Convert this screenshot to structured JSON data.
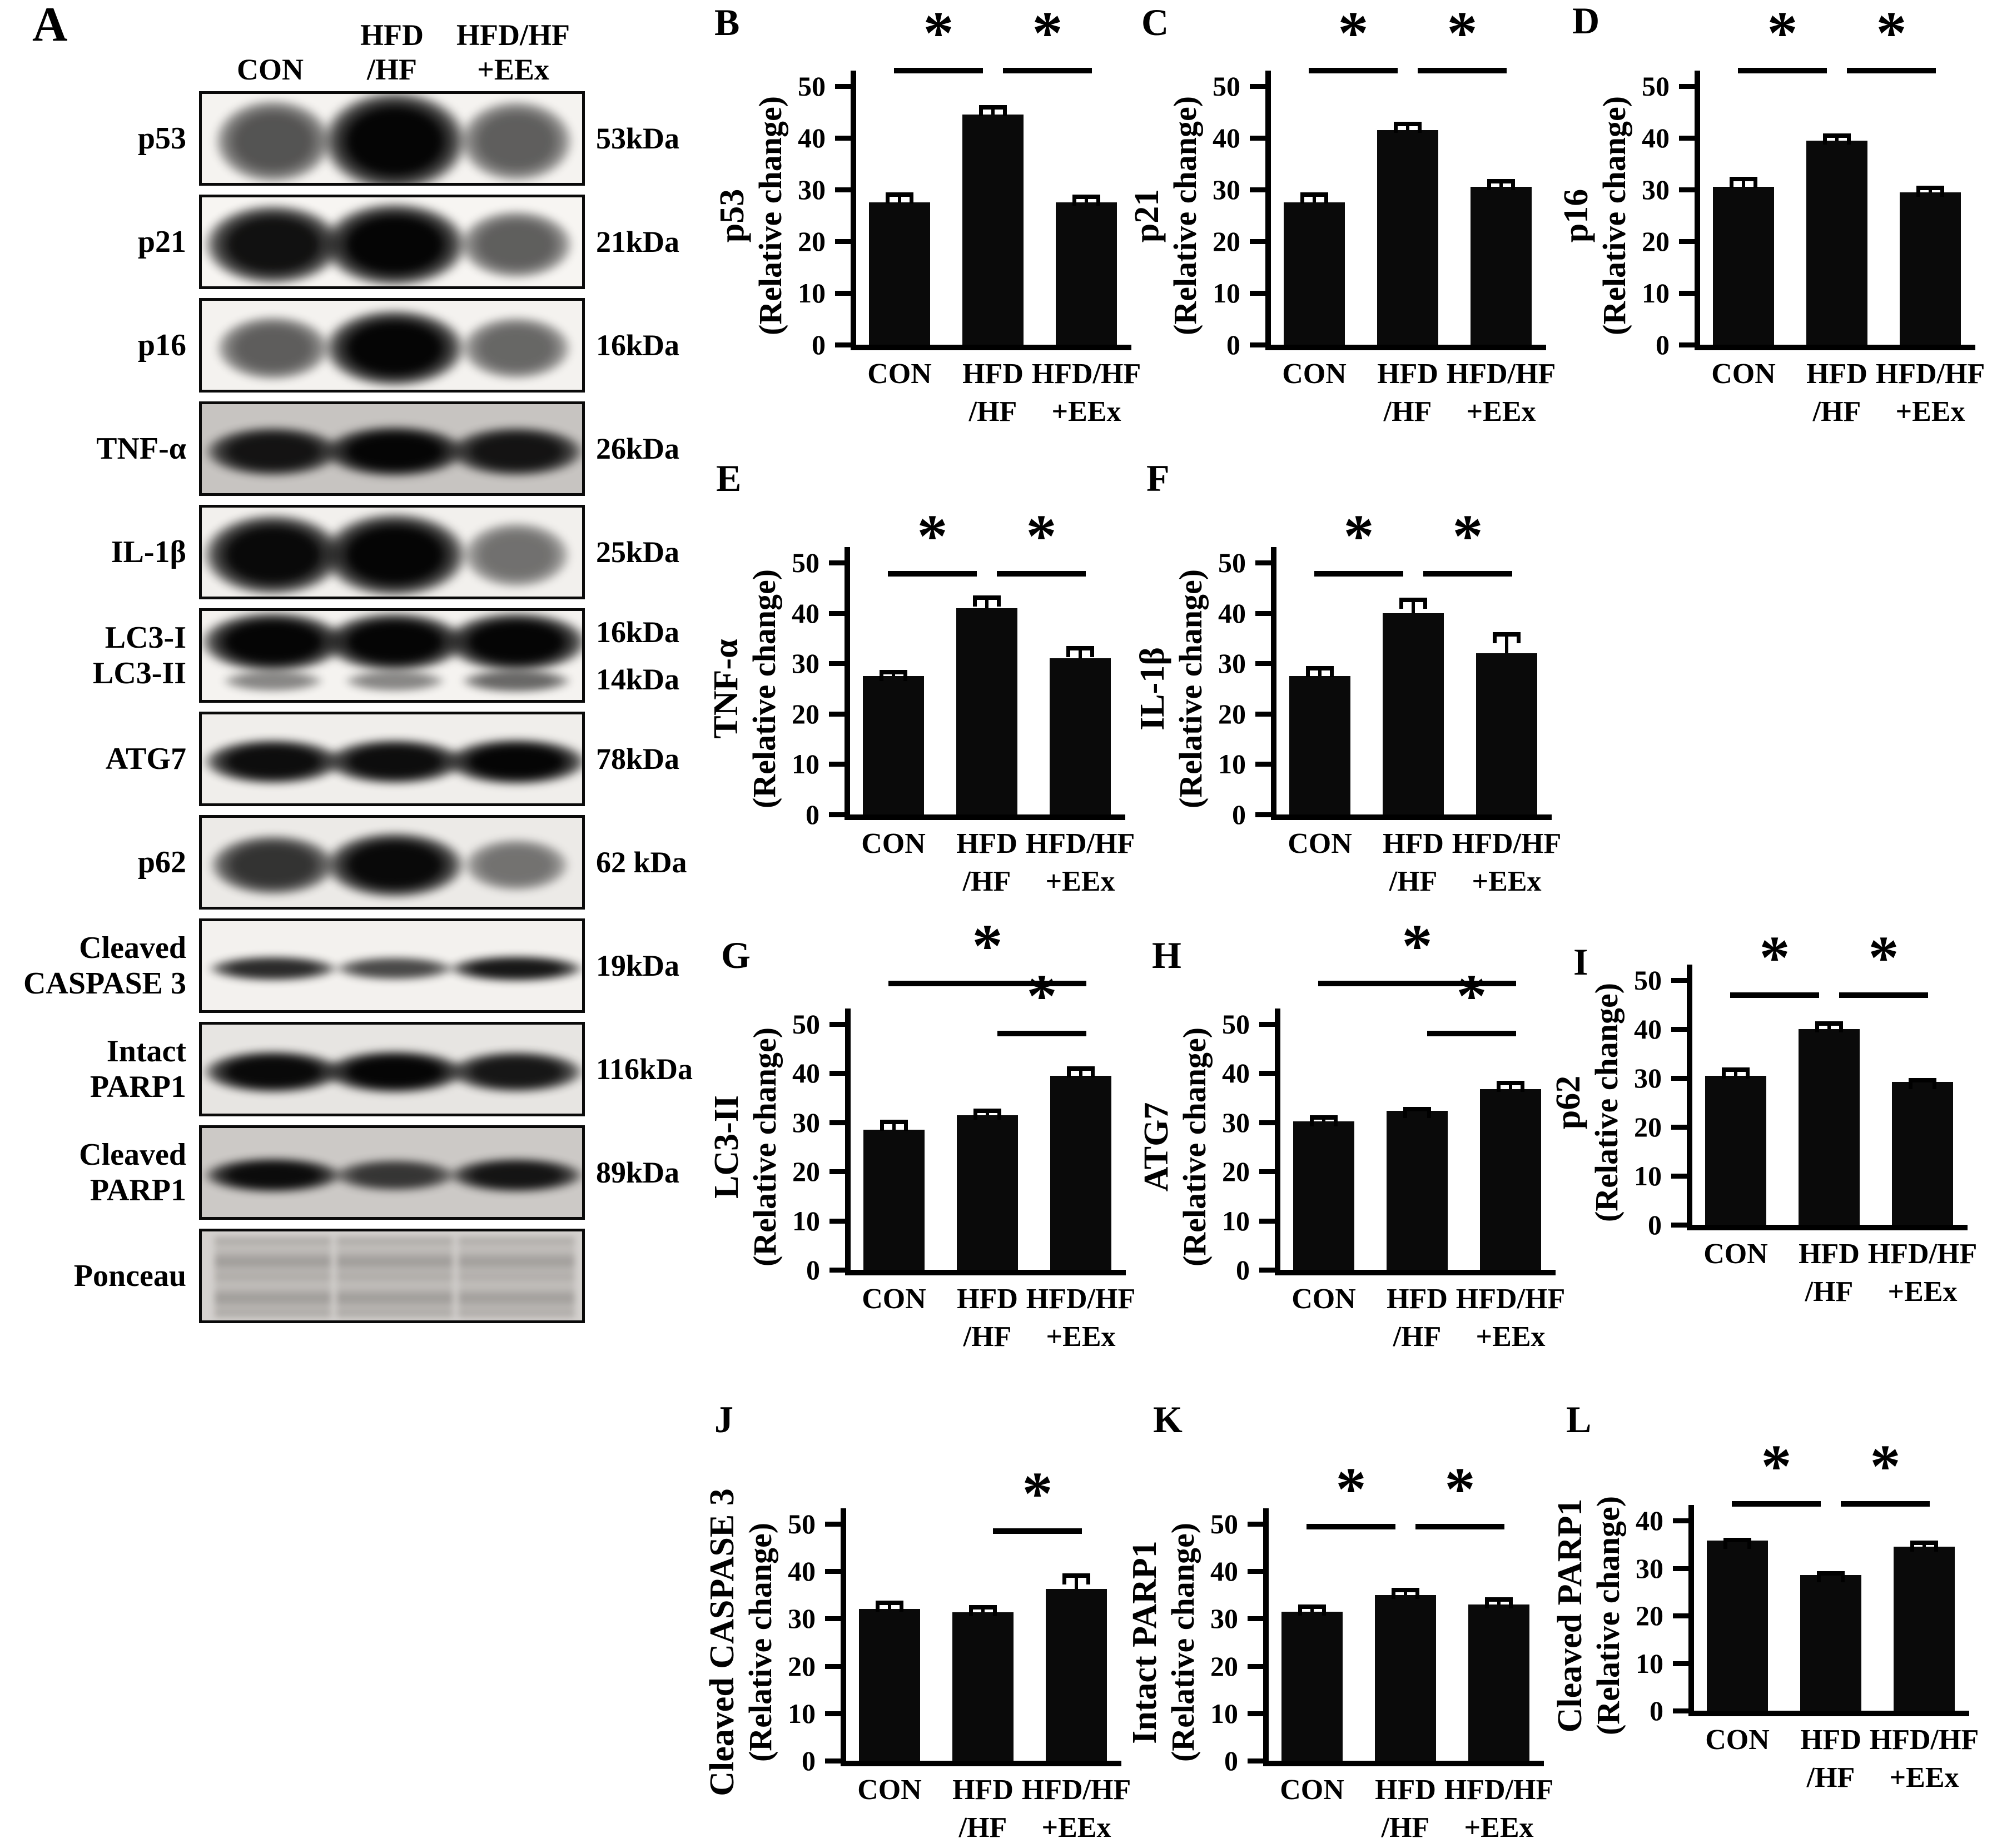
{
  "colors": {
    "bar": "#0a0a0a",
    "axis": "#000000",
    "background": "#ffffff"
  },
  "figure": {
    "panel_a": {
      "label": "A",
      "lane_headers": [
        [
          "CON"
        ],
        [
          "HFD",
          "/HF"
        ],
        [
          "HFD/HF",
          "+EEx"
        ]
      ],
      "rows": [
        {
          "label_lines": [
            "p53"
          ],
          "kda_lines": [
            "53kDa"
          ],
          "bg": "#f5f3f0",
          "bands": [
            {
              "h": 0.95,
              "lanes": [
                0.55,
                1.0,
                0.5
              ]
            }
          ]
        },
        {
          "label_lines": [
            "p21"
          ],
          "kda_lines": [
            "21kDa"
          ],
          "bg": "#f7f5f2",
          "bands": [
            {
              "h": 0.8,
              "lanes": [
                0.88,
                1.0,
                0.5
              ]
            }
          ]
        },
        {
          "label_lines": [
            "p16"
          ],
          "kda_lines": [
            "16kDa"
          ],
          "bg": "#f4f2ef",
          "bands": [
            {
              "h": 0.75,
              "lanes": [
                0.5,
                0.95,
                0.45
              ]
            }
          ]
        },
        {
          "label_lines": [
            "TNF-α"
          ],
          "kda_lines": [
            "26kDa"
          ],
          "bg": "#c7c4c1",
          "bands": [
            {
              "h": 0.5,
              "lanes": [
                0.85,
                0.95,
                0.85
              ]
            }
          ]
        },
        {
          "label_lines": [
            "IL-1β"
          ],
          "kda_lines": [
            "25kDa"
          ],
          "bg": "#f2f0ed",
          "bands": [
            {
              "h": 0.8,
              "lanes": [
                0.92,
                1.0,
                0.4
              ]
            }
          ]
        },
        {
          "label_lines": [
            "LC3-I",
            "LC3-II"
          ],
          "kda_lines": [
            "16kDa",
            "14kDa"
          ],
          "bg": "#f5f3f0",
          "bands": [
            {
              "h": 0.58,
              "lanes": [
                1.0,
                0.95,
                0.97
              ]
            },
            {
              "h": 0.28,
              "lanes": [
                0.3,
                0.3,
                0.45
              ]
            }
          ]
        },
        {
          "label_lines": [
            "ATG7"
          ],
          "kda_lines": [
            "78kDa"
          ],
          "bg": "#f0eeeb",
          "bands": [
            {
              "h": 0.45,
              "lanes": [
                0.9,
                0.9,
                0.95
              ]
            }
          ]
        },
        {
          "label_lines": [
            "p62"
          ],
          "kda_lines": [
            "62 kDa"
          ],
          "bg": "#eceae7",
          "bands": [
            {
              "h": 0.65,
              "lanes": [
                0.7,
                0.92,
                0.38
              ]
            }
          ]
        },
        {
          "label_lines": [
            "Cleaved",
            "CASPASE 3"
          ],
          "kda_lines": [
            "19kDa"
          ],
          "bg": "#f3f1ee",
          "bands": [
            {
              "h": 0.26,
              "lanes": [
                0.75,
                0.6,
                0.85
              ]
            }
          ]
        },
        {
          "label_lines": [
            "Intact",
            "PARP1"
          ],
          "kda_lines": [
            "116kDa"
          ],
          "bg": "#e7e5e2",
          "bands": [
            {
              "h": 0.42,
              "lanes": [
                0.92,
                0.95,
                0.85
              ]
            }
          ]
        },
        {
          "label_lines": [
            "Cleaved",
            "PARP1"
          ],
          "kda_lines": [
            "89kDa"
          ],
          "bg": "#ccc9c6",
          "bands": [
            {
              "h": 0.35,
              "lanes": [
                0.9,
                0.65,
                0.85
              ]
            }
          ]
        },
        {
          "label_lines": [
            "Ponceau"
          ],
          "kda_lines": [],
          "bg": "#d5d2cf",
          "style": "smear",
          "bands": [
            {
              "h": 0.8,
              "lanes": [
                0.55,
                0.55,
                0.5
              ]
            }
          ]
        }
      ]
    }
  },
  "chart_data": [
    {
      "id": "B",
      "letter": "B",
      "type": "bar",
      "protein": "p53",
      "ylabel": "(Relative change)",
      "categories": [
        [
          "CON"
        ],
        [
          "HFD",
          "/HF"
        ],
        [
          "HFD/HF",
          "+EEx"
        ]
      ],
      "values": [
        27.5,
        44.5,
        27.5
      ],
      "errors": [
        2.0,
        1.8,
        1.5
      ],
      "ylim": [
        0,
        50
      ],
      "yticks": [
        0,
        10,
        20,
        30,
        40,
        50
      ],
      "grid": false,
      "significance": [
        {
          "from": 0,
          "to": 1,
          "label": "*",
          "level": 0
        },
        {
          "from": 1,
          "to": 2,
          "label": "*",
          "level": 0
        }
      ]
    },
    {
      "id": "C",
      "letter": "C",
      "type": "bar",
      "protein": "p21",
      "ylabel": "(Relative change)",
      "categories": [
        [
          "CON"
        ],
        [
          "HFD",
          "/HF"
        ],
        [
          "HFD/HF",
          "+EEx"
        ]
      ],
      "values": [
        27.5,
        41.5,
        30.5
      ],
      "errors": [
        2.0,
        1.6,
        1.5
      ],
      "ylim": [
        0,
        50
      ],
      "yticks": [
        0,
        10,
        20,
        30,
        40,
        50
      ],
      "grid": false,
      "significance": [
        {
          "from": 0,
          "to": 1,
          "label": "*",
          "level": 0
        },
        {
          "from": 1,
          "to": 2,
          "label": "*",
          "level": 0
        }
      ]
    },
    {
      "id": "D",
      "letter": "D",
      "type": "bar",
      "protein": "p16",
      "ylabel": "(Relative change)",
      "categories": [
        [
          "CON"
        ],
        [
          "HFD",
          "/HF"
        ],
        [
          "HFD/HF",
          "+EEx"
        ]
      ],
      "values": [
        30.5,
        39.5,
        29.5
      ],
      "errors": [
        2.0,
        1.4,
        1.2
      ],
      "ylim": [
        0,
        50
      ],
      "yticks": [
        0,
        10,
        20,
        30,
        40,
        50
      ],
      "grid": false,
      "significance": [
        {
          "from": 0,
          "to": 1,
          "label": "*",
          "level": 0
        },
        {
          "from": 1,
          "to": 2,
          "label": "*",
          "level": 0
        }
      ]
    },
    {
      "id": "E",
      "letter": "E",
      "type": "bar",
      "protein": "TNF-α",
      "ylabel": "(Relative change)",
      "categories": [
        [
          "CON"
        ],
        [
          "HFD",
          "/HF"
        ],
        [
          "HFD/HF",
          "+EEx"
        ]
      ],
      "values": [
        27.5,
        41.0,
        31.0
      ],
      "errors": [
        1.2,
        2.5,
        2.4
      ],
      "ylim": [
        0,
        50
      ],
      "yticks": [
        0,
        10,
        20,
        30,
        40,
        50
      ],
      "grid": false,
      "significance": [
        {
          "from": 0,
          "to": 1,
          "label": "*",
          "level": 0
        },
        {
          "from": 1,
          "to": 2,
          "label": "*",
          "level": 0
        }
      ]
    },
    {
      "id": "F",
      "letter": "F",
      "type": "bar",
      "protein": "IL-1β",
      "ylabel": "(Relative change)",
      "categories": [
        [
          "CON"
        ],
        [
          "HFD",
          "/HF"
        ],
        [
          "HFD/HF",
          "+EEx"
        ]
      ],
      "values": [
        27.5,
        40.0,
        32.0
      ],
      "errors": [
        2.0,
        3.0,
        4.2
      ],
      "ylim": [
        0,
        50
      ],
      "yticks": [
        0,
        10,
        20,
        30,
        40,
        50
      ],
      "grid": false,
      "significance": [
        {
          "from": 0,
          "to": 1,
          "label": "*",
          "level": 0
        },
        {
          "from": 1,
          "to": 2,
          "label": "*",
          "level": 0
        }
      ]
    },
    {
      "id": "G",
      "letter": "G",
      "type": "bar",
      "protein": "LC3-II",
      "ylabel": "(Relative change)",
      "categories": [
        [
          "CON"
        ],
        [
          "HFD",
          "/HF"
        ],
        [
          "HFD/HF",
          "+EEx"
        ]
      ],
      "values": [
        28.5,
        31.5,
        39.5
      ],
      "errors": [
        2.0,
        1.3,
        1.9
      ],
      "ylim": [
        0,
        50
      ],
      "yticks": [
        0,
        10,
        20,
        30,
        40,
        50
      ],
      "grid": false,
      "significance": [
        {
          "from": 0,
          "to": 2,
          "label": "*",
          "level": 1
        },
        {
          "from": 1,
          "to": 2,
          "label": "*",
          "level": 0
        }
      ]
    },
    {
      "id": "H",
      "letter": "H",
      "type": "bar",
      "protein": "ATG7",
      "ylabel": "(Relative change)",
      "categories": [
        [
          "CON"
        ],
        [
          "HFD",
          "/HF"
        ],
        [
          "HFD/HF",
          "+EEx"
        ]
      ],
      "values": [
        30.2,
        32.3,
        36.8
      ],
      "errors": [
        1.2,
        0.9,
        1.7
      ],
      "ylim": [
        0,
        50
      ],
      "yticks": [
        0,
        10,
        20,
        30,
        40,
        50
      ],
      "grid": false,
      "significance": [
        {
          "from": 0,
          "to": 2,
          "label": "*",
          "level": 1
        },
        {
          "from": 1,
          "to": 2,
          "label": "*",
          "level": 0
        }
      ]
    },
    {
      "id": "I",
      "letter": "I",
      "type": "bar",
      "protein": "p62",
      "ylabel": "(Relative change)",
      "categories": [
        [
          "CON"
        ],
        [
          "HFD",
          "/HF"
        ],
        [
          "HFD/HF",
          "+EEx"
        ]
      ],
      "values": [
        30.5,
        40.0,
        29.2
      ],
      "errors": [
        1.7,
        1.6,
        0.8
      ],
      "ylim": [
        0,
        50
      ],
      "yticks": [
        0,
        10,
        20,
        30,
        40,
        50
      ],
      "grid": false,
      "significance": [
        {
          "from": 0,
          "to": 1,
          "label": "*",
          "level": 0
        },
        {
          "from": 1,
          "to": 2,
          "label": "*",
          "level": 0
        }
      ]
    },
    {
      "id": "J",
      "letter": "J",
      "type": "bar",
      "protein": "Cleaved CASPASE 3",
      "ylabel": "(Relative change)",
      "categories": [
        [
          "CON"
        ],
        [
          "HFD",
          "/HF"
        ],
        [
          "HFD/HF",
          "+EEx"
        ]
      ],
      "values": [
        32.0,
        31.3,
        36.3
      ],
      "errors": [
        1.8,
        1.6,
        3.2
      ],
      "ylim": [
        0,
        50
      ],
      "yticks": [
        0,
        10,
        20,
        30,
        40,
        50
      ],
      "grid": false,
      "significance": [
        {
          "from": 1,
          "to": 2,
          "label": "*",
          "level": 0
        }
      ]
    },
    {
      "id": "K",
      "letter": "K",
      "type": "bar",
      "protein": "Intact PARP1",
      "ylabel": "(Relative change)",
      "categories": [
        [
          "CON"
        ],
        [
          "HFD",
          "/HF"
        ],
        [
          "HFD/HF",
          "+EEx"
        ]
      ],
      "values": [
        31.5,
        35.0,
        33.0
      ],
      "errors": [
        1.5,
        1.5,
        1.5
      ],
      "ylim": [
        0,
        50
      ],
      "yticks": [
        0,
        10,
        20,
        30,
        40,
        50
      ],
      "grid": false,
      "significance": [
        {
          "from": 0,
          "to": 1,
          "label": "*",
          "level": 0
        },
        {
          "from": 1,
          "to": 2,
          "label": "*",
          "level": 0
        }
      ]
    },
    {
      "id": "L",
      "letter": "L",
      "type": "bar",
      "protein": "Cleaved PARP1",
      "ylabel": "(Relative change)",
      "categories": [
        [
          "CON"
        ],
        [
          "HFD",
          "/HF"
        ],
        [
          "HFD/HF",
          "+EEx"
        ]
      ],
      "values": [
        35.8,
        28.5,
        34.5
      ],
      "errors": [
        0.6,
        0.9,
        1.3
      ],
      "ylim": [
        0,
        40
      ],
      "yticks": [
        0,
        10,
        20,
        30,
        40
      ],
      "grid": false,
      "significance": [
        {
          "from": 0,
          "to": 1,
          "label": "*",
          "level": 0
        },
        {
          "from": 1,
          "to": 2,
          "label": "*",
          "level": 0
        }
      ]
    }
  ]
}
